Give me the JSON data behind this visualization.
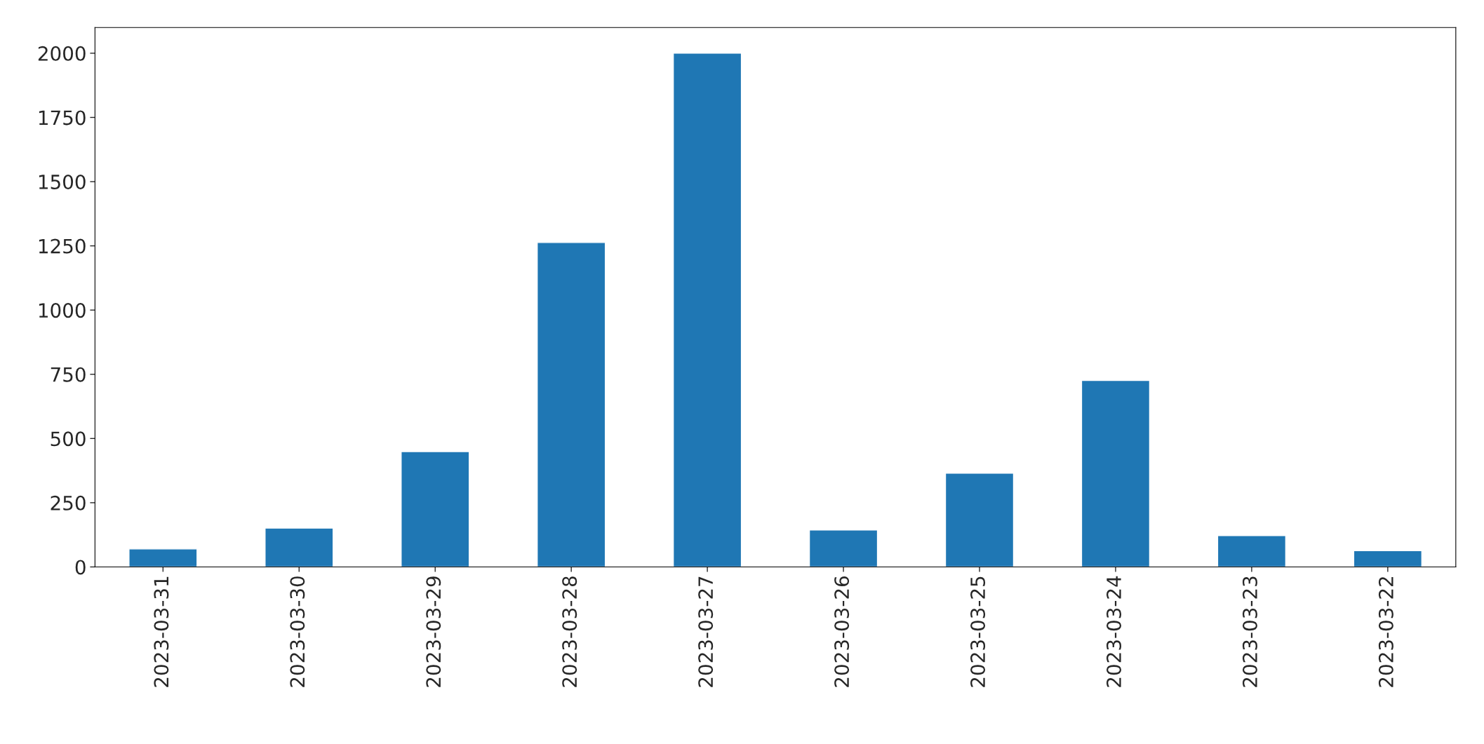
{
  "chart_data": {
    "type": "bar",
    "categories": [
      "2023-03-31",
      "2023-03-30",
      "2023-03-29",
      "2023-03-28",
      "2023-03-27",
      "2023-03-26",
      "2023-03-25",
      "2023-03-24",
      "2023-03-23",
      "2023-03-22"
    ],
    "values": [
      70,
      151,
      449,
      1263,
      2000,
      144,
      365,
      726,
      122,
      63
    ],
    "color": "#1f77b4",
    "ylim": [
      0,
      2100
    ],
    "yticks": [
      0,
      250,
      500,
      750,
      1000,
      1250,
      1500,
      1750,
      2000
    ],
    "grid": false,
    "legend": false
  }
}
